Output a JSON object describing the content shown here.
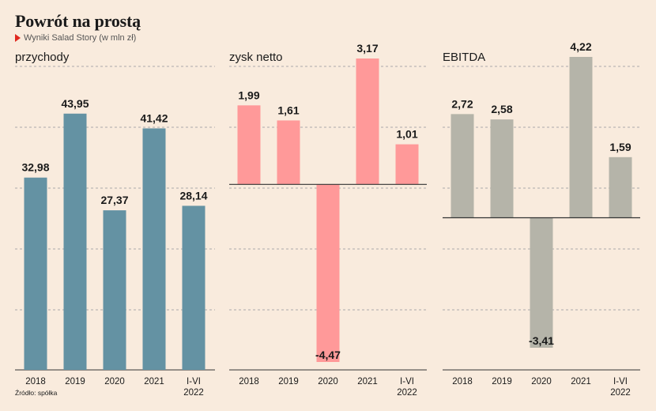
{
  "title": "Powrót na prostą",
  "subtitle": "Wyniki Salad Story (w mln zł)",
  "source": "Źródło: spółka",
  "chart_data": [
    {
      "type": "bar",
      "title": "przychody",
      "categories": [
        [
          "2018"
        ],
        [
          "2019"
        ],
        [
          "2020"
        ],
        [
          "2021"
        ],
        [
          "I-VI",
          "2022"
        ]
      ],
      "values": [
        32.98,
        43.95,
        27.37,
        41.42,
        28.14
      ],
      "value_labels": [
        "32,98",
        "43,95",
        "27,37",
        "41,42",
        "28,14"
      ],
      "color": "#6492a3",
      "ylim": [
        0,
        53
      ],
      "grid": true
    },
    {
      "type": "bar",
      "title": "zysk netto",
      "categories": [
        [
          "2018"
        ],
        [
          "2019"
        ],
        [
          "2020"
        ],
        [
          "2021"
        ],
        [
          "I-VI",
          "2022"
        ]
      ],
      "values": [
        1.99,
        1.61,
        -4.47,
        3.17,
        1.01
      ],
      "value_labels": [
        "1,99",
        "1,61",
        "-4,47",
        "3,17",
        "1,01"
      ],
      "color": "#ff9999",
      "ylim": [
        -4.47,
        3.17
      ],
      "grid": true
    },
    {
      "type": "bar",
      "title": "EBITDA",
      "categories": [
        [
          "2018"
        ],
        [
          "2019"
        ],
        [
          "2020"
        ],
        [
          "2021"
        ],
        [
          "I-VI",
          "2022"
        ]
      ],
      "values": [
        2.72,
        2.58,
        -3.41,
        4.22,
        1.59
      ],
      "value_labels": [
        "2,72",
        "2,58",
        "-3,41",
        "4,22",
        "1,59"
      ],
      "color": "#b5b4a9",
      "ylim": [
        -3.41,
        4.22
      ],
      "grid": true
    }
  ]
}
